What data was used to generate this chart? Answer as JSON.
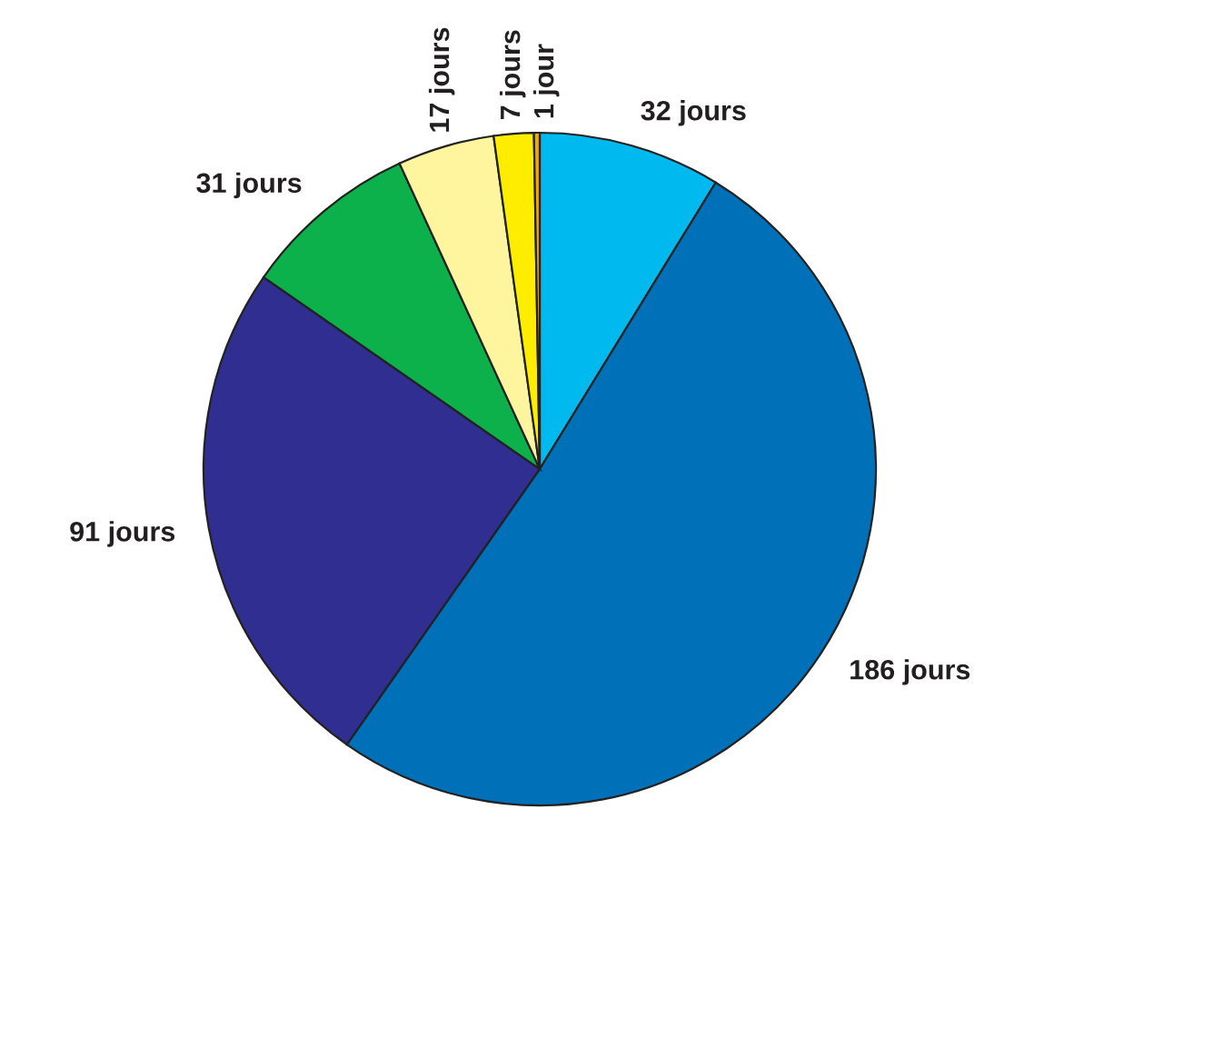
{
  "chart_data": {
    "type": "pie",
    "categories": [
      "32 jours",
      "186 jours",
      "91 jours",
      "31 jours",
      "17 jours",
      "7 jours",
      "1 jour"
    ],
    "values": [
      32,
      186,
      91,
      31,
      17,
      7,
      1
    ],
    "colors": [
      "#00b9ee",
      "#0070b8",
      "#312e91",
      "#0db14b",
      "#fff59e",
      "#ffed00",
      "#f2a900"
    ],
    "legend": false
  }
}
